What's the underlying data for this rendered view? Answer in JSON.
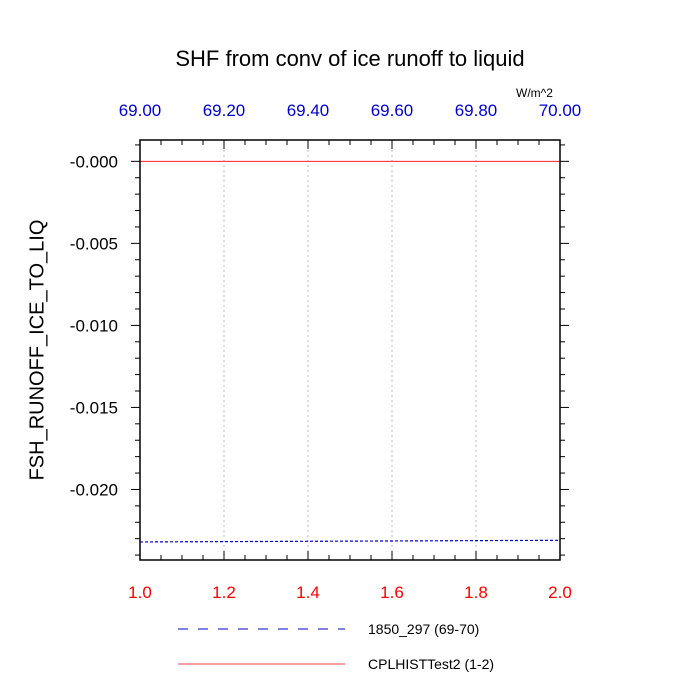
{
  "chart_data": {
    "type": "line",
    "title": "SHF from conv of ice runoff to liquid",
    "units": "W/m^2",
    "ylabel": "FSH_RUNOFF_ICE_TO_LIQ",
    "bottom_axis": {
      "xlim": [
        1.0,
        2.0
      ],
      "ticks": [
        1.0,
        1.2,
        1.4,
        1.6,
        1.8,
        2.0
      ],
      "tick_labels": [
        "1.0",
        "1.2",
        "1.4",
        "1.6",
        "1.8",
        "2.0"
      ],
      "color": "#ff0000"
    },
    "top_axis": {
      "xlim": [
        69.0,
        70.0
      ],
      "ticks": [
        69.0,
        69.2,
        69.4,
        69.6,
        69.8,
        70.0
      ],
      "tick_labels": [
        "69.00",
        "69.20",
        "69.40",
        "69.60",
        "69.80",
        "70.00"
      ],
      "color": "#0000cc"
    },
    "y_axis": {
      "ylim": [
        -0.0243,
        0.0013
      ],
      "ticks": [
        0.0,
        -0.005,
        -0.01,
        -0.015,
        -0.02
      ],
      "tick_labels": [
        "-0.000",
        "-0.005",
        "-0.010",
        "-0.015",
        "-0.020"
      ]
    },
    "grid": "vertical dotted at x ticks",
    "series": [
      {
        "name": "1850_297 (69-70)",
        "axis": "top",
        "color": "#0000cc",
        "style": "dashed",
        "x": [
          69.0,
          70.0
        ],
        "y": [
          -0.0232,
          -0.0231
        ]
      },
      {
        "name": "CPLHISTTest2 (1-2)",
        "axis": "bottom",
        "color": "#ff0000",
        "style": "solid",
        "x": [
          1.0,
          2.0
        ],
        "y": [
          0.0,
          0.0
        ]
      }
    ],
    "legend": "bottom"
  }
}
